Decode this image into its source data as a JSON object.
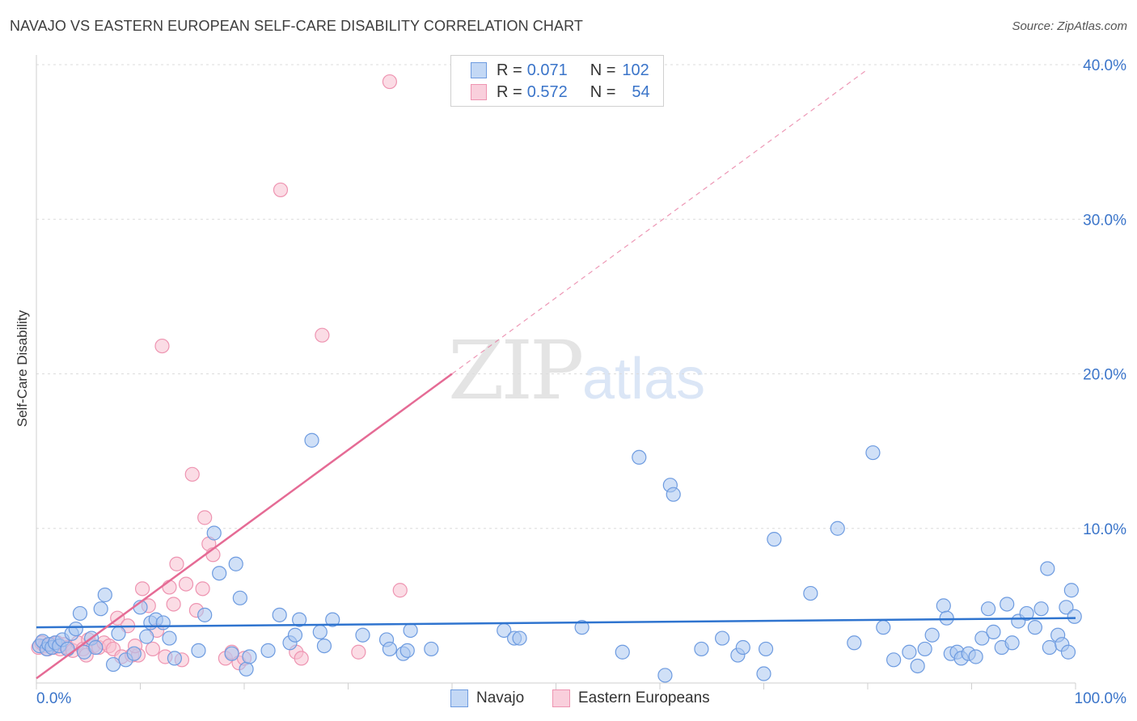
{
  "header": {
    "title": "NAVAJO VS EASTERN EUROPEAN SELF-CARE DISABILITY CORRELATION CHART",
    "source": "Source: ZipAtlas.com"
  },
  "legend": {
    "navajo": {
      "r_label": "R = ",
      "r_value": "0.071",
      "n_label": "N = ",
      "n_value": "102"
    },
    "eastern": {
      "r_label": "R = ",
      "r_value": "0.572",
      "n_label": "N = ",
      "n_value": "54"
    }
  },
  "bottom_legend": {
    "navajo": "Navajo",
    "eastern": "Eastern Europeans"
  },
  "watermark": {
    "zip": "ZIP",
    "atlas": "atlas"
  },
  "colors": {
    "navajo_fill": "#a9c7f0",
    "navajo_stroke": "#6d9be0",
    "navajo_line": "#2f74cf",
    "eastern_fill": "#f7bfd0",
    "eastern_stroke": "#ee94b1",
    "eastern_line": "#e56b95",
    "tick_text": "#3a74c9"
  },
  "chart_data": {
    "type": "scatter",
    "title": "NAVAJO VS EASTERN EUROPEAN SELF-CARE DISABILITY CORRELATION CHART",
    "xlabel": "",
    "ylabel": "Self-Care Disability",
    "xlim": [
      0,
      100
    ],
    "ylim": [
      0,
      42
    ],
    "y_ticks": [
      10,
      20,
      30,
      40
    ],
    "y_tick_labels": [
      "10.0%",
      "20.0%",
      "30.0%",
      "40.0%"
    ],
    "x_tick_labels": [
      "0.0%",
      "100.0%"
    ],
    "grid": true,
    "series": [
      {
        "name": "Navajo",
        "r": 0.071,
        "n": 102,
        "trend": {
          "x": [
            0,
            100
          ],
          "y": [
            3.6,
            4.2
          ]
        },
        "points": [
          [
            0.3,
            2.4
          ],
          [
            0.6,
            2.7
          ],
          [
            1.0,
            2.2
          ],
          [
            1.2,
            2.5
          ],
          [
            1.5,
            2.3
          ],
          [
            1.8,
            2.6
          ],
          [
            2.2,
            2.4
          ],
          [
            2.5,
            2.8
          ],
          [
            3.0,
            2.2
          ],
          [
            3.4,
            3.2
          ],
          [
            3.8,
            3.5
          ],
          [
            4.2,
            4.5
          ],
          [
            4.6,
            2.0
          ],
          [
            5.3,
            2.9
          ],
          [
            5.7,
            2.3
          ],
          [
            6.2,
            4.8
          ],
          [
            6.6,
            5.7
          ],
          [
            7.4,
            1.2
          ],
          [
            7.9,
            3.2
          ],
          [
            8.6,
            1.5
          ],
          [
            9.4,
            1.9
          ],
          [
            10.0,
            4.9
          ],
          [
            10.6,
            3.0
          ],
          [
            11.0,
            3.9
          ],
          [
            11.5,
            4.1
          ],
          [
            12.2,
            3.9
          ],
          [
            12.8,
            2.9
          ],
          [
            13.3,
            1.6
          ],
          [
            15.6,
            2.1
          ],
          [
            16.2,
            4.4
          ],
          [
            17.1,
            9.7
          ],
          [
            17.6,
            7.1
          ],
          [
            18.8,
            1.9
          ],
          [
            19.2,
            7.7
          ],
          [
            19.6,
            5.5
          ],
          [
            20.2,
            0.9
          ],
          [
            20.5,
            1.7
          ],
          [
            22.3,
            2.1
          ],
          [
            23.4,
            4.4
          ],
          [
            24.4,
            2.6
          ],
          [
            24.9,
            3.1
          ],
          [
            25.3,
            4.1
          ],
          [
            26.5,
            15.7
          ],
          [
            27.3,
            3.3
          ],
          [
            27.7,
            2.4
          ],
          [
            28.5,
            4.1
          ],
          [
            31.4,
            3.1
          ],
          [
            33.7,
            2.8
          ],
          [
            34.0,
            2.2
          ],
          [
            35.3,
            1.9
          ],
          [
            35.7,
            2.1
          ],
          [
            36.0,
            3.4
          ],
          [
            38.0,
            2.2
          ],
          [
            45.0,
            3.4
          ],
          [
            46.0,
            2.9
          ],
          [
            46.5,
            2.9
          ],
          [
            52.5,
            3.6
          ],
          [
            56.4,
            2.0
          ],
          [
            58.0,
            14.6
          ],
          [
            61.0,
            12.8
          ],
          [
            61.3,
            12.2
          ],
          [
            64.0,
            2.2
          ],
          [
            66.0,
            2.9
          ],
          [
            67.5,
            1.8
          ],
          [
            68.0,
            2.3
          ],
          [
            70.2,
            2.2
          ],
          [
            71.0,
            9.3
          ],
          [
            74.5,
            5.8
          ],
          [
            77.1,
            10.0
          ],
          [
            78.7,
            2.6
          ],
          [
            80.5,
            14.9
          ],
          [
            81.5,
            3.6
          ],
          [
            82.5,
            1.5
          ],
          [
            84.0,
            2.0
          ],
          [
            84.8,
            1.1
          ],
          [
            85.5,
            2.2
          ],
          [
            86.2,
            3.1
          ],
          [
            87.3,
            5.0
          ],
          [
            87.6,
            4.2
          ],
          [
            88.0,
            1.9
          ],
          [
            88.6,
            2.0
          ],
          [
            89.0,
            1.6
          ],
          [
            89.7,
            1.9
          ],
          [
            90.4,
            1.7
          ],
          [
            91.0,
            2.9
          ],
          [
            91.6,
            4.8
          ],
          [
            92.1,
            3.3
          ],
          [
            92.9,
            2.3
          ],
          [
            93.4,
            5.1
          ],
          [
            93.9,
            2.6
          ],
          [
            94.5,
            4.0
          ],
          [
            95.3,
            4.5
          ],
          [
            96.1,
            3.6
          ],
          [
            96.7,
            4.8
          ],
          [
            97.3,
            7.4
          ],
          [
            97.5,
            2.3
          ],
          [
            98.3,
            3.1
          ],
          [
            98.7,
            2.5
          ],
          [
            99.1,
            4.9
          ],
          [
            99.3,
            2.0
          ],
          [
            99.6,
            6.0
          ],
          [
            99.9,
            4.3
          ],
          [
            60.5,
            0.5
          ],
          [
            70.0,
            0.6
          ]
        ]
      },
      {
        "name": "Eastern Europeans",
        "r": 0.572,
        "n": 54,
        "trend": {
          "x": [
            0,
            40
          ],
          "y": [
            0.3,
            20.0
          ],
          "dashed_to": [
            80,
            39.7
          ]
        },
        "points": [
          [
            0.2,
            2.3
          ],
          [
            0.5,
            2.6
          ],
          [
            0.8,
            2.4
          ],
          [
            1.1,
            2.2
          ],
          [
            1.4,
            2.5
          ],
          [
            1.7,
            2.3
          ],
          [
            2.0,
            2.6
          ],
          [
            2.3,
            2.2
          ],
          [
            2.7,
            2.5
          ],
          [
            3.0,
            2.3
          ],
          [
            3.5,
            2.1
          ],
          [
            4.0,
            2.6
          ],
          [
            4.5,
            2.2
          ],
          [
            5.0,
            2.8
          ],
          [
            5.5,
            2.4
          ],
          [
            6.0,
            2.3
          ],
          [
            6.5,
            2.6
          ],
          [
            7.0,
            2.4
          ],
          [
            7.4,
            2.2
          ],
          [
            7.8,
            4.2
          ],
          [
            8.2,
            1.7
          ],
          [
            8.8,
            3.7
          ],
          [
            9.2,
            1.8
          ],
          [
            9.8,
            1.8
          ],
          [
            10.2,
            6.1
          ],
          [
            10.8,
            5.0
          ],
          [
            11.2,
            2.2
          ],
          [
            11.6,
            3.4
          ],
          [
            12.1,
            21.8
          ],
          [
            12.4,
            1.7
          ],
          [
            12.8,
            6.2
          ],
          [
            13.2,
            5.1
          ],
          [
            13.5,
            7.7
          ],
          [
            14.0,
            1.5
          ],
          [
            14.4,
            6.4
          ],
          [
            15.0,
            13.5
          ],
          [
            15.4,
            4.7
          ],
          [
            16.0,
            6.1
          ],
          [
            16.2,
            10.7
          ],
          [
            16.6,
            9.0
          ],
          [
            17.0,
            8.3
          ],
          [
            18.2,
            1.6
          ],
          [
            18.8,
            2.0
          ],
          [
            19.5,
            1.3
          ],
          [
            20.0,
            1.6
          ],
          [
            23.5,
            31.9
          ],
          [
            25.0,
            2.0
          ],
          [
            25.5,
            1.6
          ],
          [
            27.5,
            22.5
          ],
          [
            31.0,
            2.0
          ],
          [
            34.0,
            38.9
          ],
          [
            35.0,
            6.0
          ],
          [
            4.8,
            1.8
          ],
          [
            9.5,
            2.4
          ]
        ]
      }
    ]
  }
}
